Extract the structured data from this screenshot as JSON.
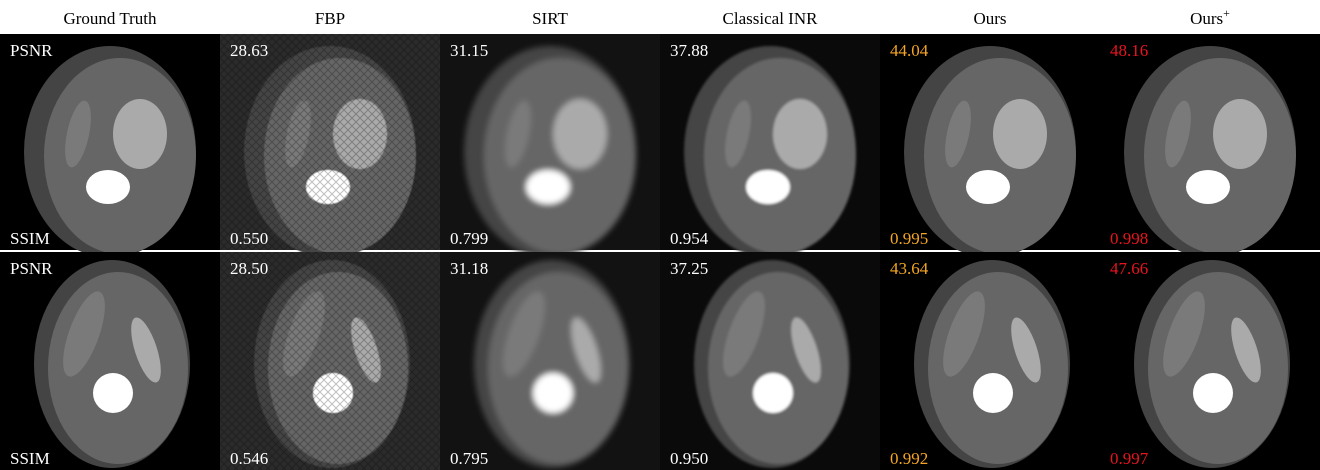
{
  "columns": [
    {
      "title": "Ground Truth"
    },
    {
      "title": "FBP"
    },
    {
      "title": "SIRT"
    },
    {
      "title": "Classical INR"
    },
    {
      "title": "Ours"
    },
    {
      "title": "Ours",
      "sup": "+"
    }
  ],
  "metric_colors": [
    "#ffffff",
    "#ffffff",
    "#ffffff",
    "#f5a623",
    "#e8141e"
  ],
  "rows": [
    {
      "psnr_label": "PSNR",
      "ssim_label": "SSIM",
      "psnr": [
        "28.63",
        "31.15",
        "37.88",
        "44.04",
        "48.16"
      ],
      "ssim": [
        "0.550",
        "0.799",
        "0.954",
        "0.995",
        "0.998"
      ]
    },
    {
      "psnr_label": "PSNR",
      "ssim_label": "SSIM",
      "psnr": [
        "28.50",
        "31.18",
        "37.25",
        "43.64",
        "47.66"
      ],
      "ssim": [
        "0.546",
        "0.795",
        "0.950",
        "0.992",
        "0.997"
      ]
    }
  ]
}
